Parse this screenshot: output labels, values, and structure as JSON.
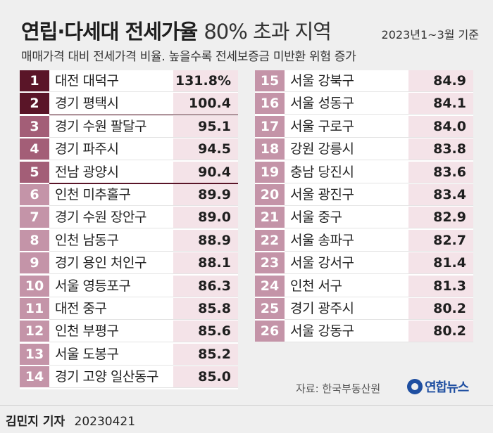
{
  "header": {
    "title_bold": "연립·다세대 전세가율",
    "title_light": "80% 초과 지역",
    "date_range": "2023년1~3월 기준",
    "subtitle": "매매가격 대비 전세가격 비율. 높을수록 전세보증금 미반환 위험 증가"
  },
  "left_table": [
    {
      "rank": "1",
      "region": "대전 대덕구",
      "value": "131.8%"
    },
    {
      "rank": "2",
      "region": "경기 평택시",
      "value": "100.4"
    },
    {
      "rank": "3",
      "region": "경기 수원 팔달구",
      "value": "95.1"
    },
    {
      "rank": "4",
      "region": "경기 파주시",
      "value": "94.5"
    },
    {
      "rank": "5",
      "region": "전남 광양시",
      "value": "90.4"
    },
    {
      "rank": "6",
      "region": "인천 미추홀구",
      "value": "89.9"
    },
    {
      "rank": "7",
      "region": "경기 수원 장안구",
      "value": "89.0"
    },
    {
      "rank": "8",
      "region": "인천 남동구",
      "value": "88.9"
    },
    {
      "rank": "9",
      "region": "경기 용인 처인구",
      "value": "88.1"
    },
    {
      "rank": "10",
      "region": "서울 영등포구",
      "value": "86.3"
    },
    {
      "rank": "11",
      "region": "대전 중구",
      "value": "85.8"
    },
    {
      "rank": "12",
      "region": "인천 부평구",
      "value": "85.6"
    },
    {
      "rank": "13",
      "region": "서울 도봉구",
      "value": "85.2"
    },
    {
      "rank": "14",
      "region": "경기 고양 일산동구",
      "value": "85.0"
    }
  ],
  "right_table": [
    {
      "rank": "15",
      "region": "서울 강북구",
      "value": "84.9"
    },
    {
      "rank": "16",
      "region": "서울 성동구",
      "value": "84.1"
    },
    {
      "rank": "17",
      "region": "서울 구로구",
      "value": "84.0"
    },
    {
      "rank": "18",
      "region": "강원 강릉시",
      "value": "83.8"
    },
    {
      "rank": "19",
      "region": "충남 당진시",
      "value": "83.6"
    },
    {
      "rank": "20",
      "region": "서울 광진구",
      "value": "83.4"
    },
    {
      "rank": "21",
      "region": "서울 중구",
      "value": "82.9"
    },
    {
      "rank": "22",
      "region": "서울 송파구",
      "value": "82.7"
    },
    {
      "rank": "23",
      "region": "서울 강서구",
      "value": "81.4"
    },
    {
      "rank": "24",
      "region": "인천 서구",
      "value": "81.3"
    },
    {
      "rank": "25",
      "region": "경기 광주시",
      "value": "80.2"
    },
    {
      "rank": "26",
      "region": "서울 강동구",
      "value": "80.2"
    }
  ],
  "source": "자료: 한국부동산원",
  "logo_text": "연합뉴스",
  "byline": {
    "reporter": "김민지 기자",
    "date": "20230421"
  },
  "colors": {
    "rank_dark": "#5a1528",
    "rank_mid": "#a35e77",
    "rank_light": "#c494a8",
    "value_highlight": "#f4e3e8",
    "logo_blue": "#1f4fa1"
  }
}
